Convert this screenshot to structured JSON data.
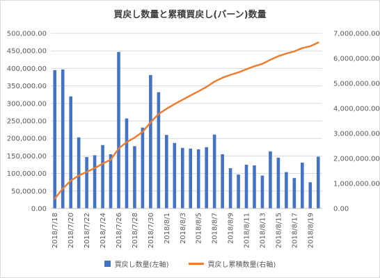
{
  "chart_data": {
    "type": "bar+line",
    "title": "買戻し数量と累積買戻し(バーン)数量",
    "categories": [
      "2018/7/18",
      "2018/7/19",
      "2018/7/20",
      "2018/7/21",
      "2018/7/22",
      "2018/7/23",
      "2018/7/24",
      "2018/7/25",
      "2018/7/26",
      "2018/7/27",
      "2018/7/28",
      "2018/7/29",
      "2018/7/30",
      "2018/7/31",
      "2018/8/1",
      "2018/8/2",
      "2018/8/3",
      "2018/8/4",
      "2018/8/5",
      "2018/8/6",
      "2018/8/7",
      "2018/8/8",
      "2018/8/9",
      "2018/8/10",
      "2018/8/11",
      "2018/8/12",
      "2018/8/13",
      "2018/8/14",
      "2018/8/15",
      "2018/8/16",
      "2018/8/17",
      "2018/8/18",
      "2018/8/19",
      "2018/8/20"
    ],
    "x_tick_labels": [
      "2018/7/18",
      "2018/7/20",
      "2018/7/22",
      "2018/7/24",
      "2018/7/26",
      "2018/7/28",
      "2018/7/30",
      "2018/8/1",
      "2018/8/3",
      "2018/8/5",
      "2018/8/7",
      "2018/8/9",
      "2018/8/11",
      "2018/8/13",
      "2018/8/15",
      "2018/8/17",
      "2018/8/19"
    ],
    "series": [
      {
        "name": "買戻し数量(左軸)",
        "type": "bar",
        "axis": "left",
        "color": "#4472c4",
        "values": [
          395000,
          397000,
          320000,
          203000,
          147000,
          152000,
          181000,
          155000,
          447000,
          257000,
          178000,
          231000,
          381000,
          332000,
          210000,
          187000,
          173000,
          171000,
          169000,
          175000,
          211000,
          155000,
          115000,
          97000,
          125000,
          123000,
          94000,
          163000,
          145000,
          104000,
          87000,
          131000,
          75000,
          148000
        ]
      },
      {
        "name": "買戻し累積数量(右軸)",
        "type": "line",
        "axis": "right",
        "color": "#ed7d31",
        "values": [
          395000,
          792000,
          1112000,
          1315000,
          1462000,
          1614000,
          1795000,
          1950000,
          2397000,
          2654000,
          2832000,
          3063000,
          3444000,
          3776000,
          3986000,
          4173000,
          4346000,
          4517000,
          4686000,
          4861000,
          5072000,
          5227000,
          5342000,
          5439000,
          5564000,
          5687000,
          5781000,
          5944000,
          6089000,
          6193000,
          6280000,
          6411000,
          6486000,
          6634000
        ]
      }
    ],
    "y_left": {
      "min": 0,
      "max": 500000,
      "ticks": [
        "0.00",
        "50,000.00",
        "100,000.00",
        "150,000.00",
        "200,000.00",
        "250,000.00",
        "300,000.00",
        "350,000.00",
        "400,000.00",
        "450,000.00",
        "500,000.00"
      ]
    },
    "y_right": {
      "min": 0,
      "max": 7000000,
      "ticks": [
        "0.00",
        "1,000,000.00",
        "2,000,000.00",
        "3,000,000.00",
        "4,000,000.00",
        "5,000,000.00",
        "6,000,000.00",
        "7,000,000.00"
      ]
    },
    "grid": true,
    "legend_position": "bottom"
  }
}
